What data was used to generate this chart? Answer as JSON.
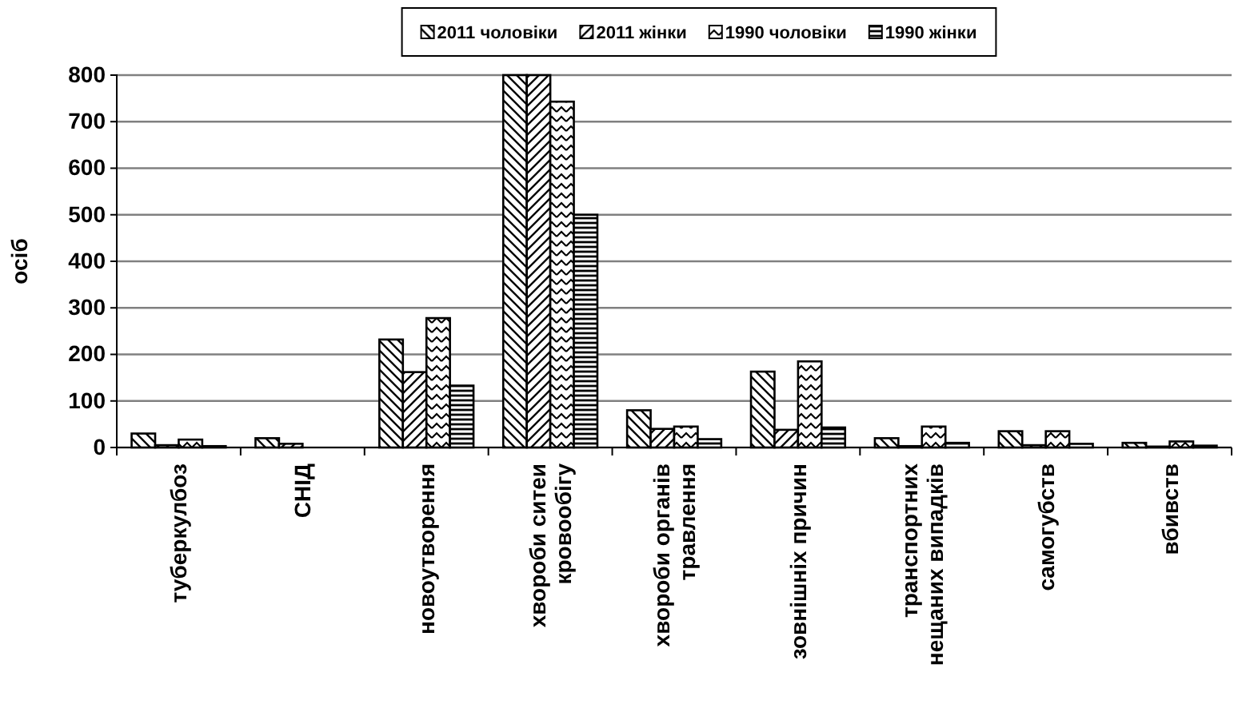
{
  "chart_data": {
    "type": "bar",
    "ylabel": "осіб",
    "categories": [
      "туберкулбоз",
      "СНІД",
      "новоутворення",
      "хвороби ситеи кровообігу",
      "хвороби органів травлення",
      "зовнішніх причин",
      "транспортних нещаних випадків",
      "самогубств",
      "вбивств"
    ],
    "series": [
      {
        "name": "2011 чоловіки",
        "color": "#000000",
        "values": [
          30,
          20,
          232,
          800,
          80,
          163,
          20,
          35,
          10
        ]
      },
      {
        "name": "2011 жінки",
        "color": "#000000",
        "values": [
          5,
          8,
          162,
          800,
          40,
          38,
          3,
          5,
          2
        ]
      },
      {
        "name": "1990 чоловіки",
        "color": "#000000",
        "values": [
          17,
          0,
          278,
          743,
          45,
          185,
          45,
          35,
          13
        ]
      },
      {
        "name": "1990 жінки",
        "color": "#000000",
        "values": [
          3,
          0,
          133,
          500,
          18,
          43,
          10,
          8,
          4
        ]
      }
    ],
    "ylim": [
      0,
      800
    ],
    "yticks": [
      0,
      100,
      200,
      300,
      400,
      500,
      600,
      700,
      800
    ],
    "grid": "y",
    "legend": "top"
  }
}
